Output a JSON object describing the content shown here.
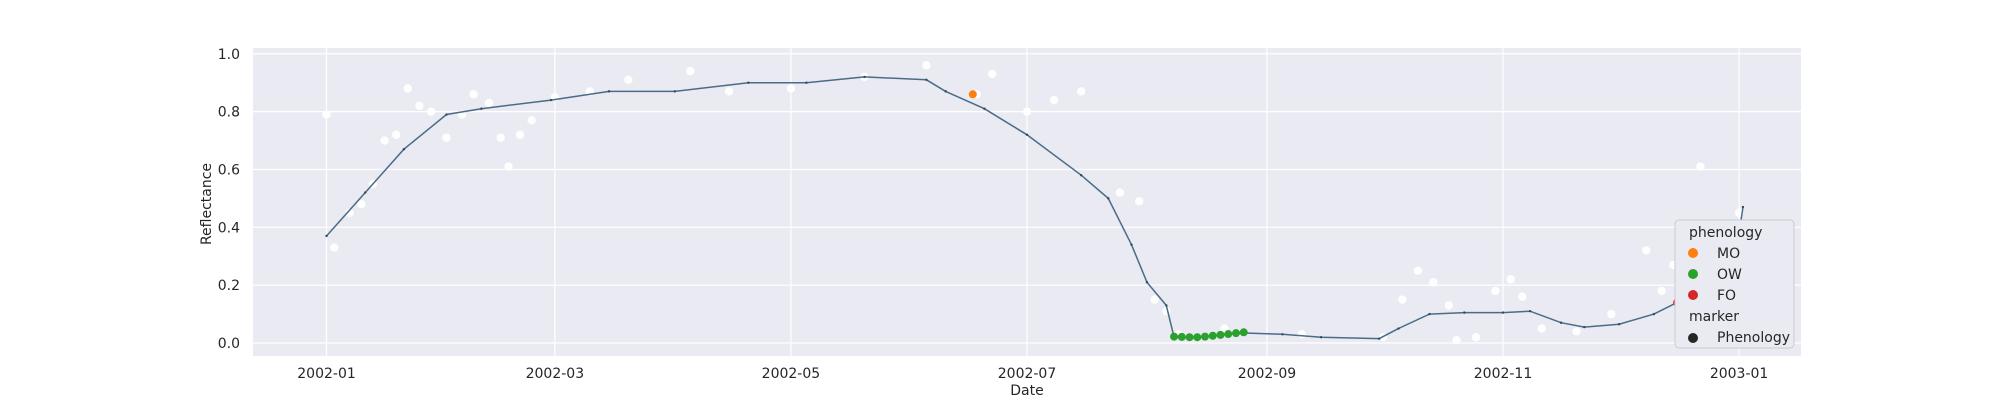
{
  "chart_data": {
    "type": "scatter",
    "xlabel": "Date",
    "ylabel": "Reflectance",
    "ylim": [
      -0.045,
      1.02
    ],
    "xlim": [
      "2001-12-13",
      "2003-01-17"
    ],
    "x_ticks": [
      "2002-01",
      "2002-03",
      "2002-05",
      "2002-07",
      "2002-09",
      "2002-11",
      "2003-01"
    ],
    "y_ticks": [
      "0.0",
      "0.2",
      "0.4",
      "0.6",
      "0.8",
      "1.0"
    ],
    "y_tick_values": [
      0.0,
      0.2,
      0.4,
      0.6,
      0.8,
      1.0
    ],
    "grid": true,
    "background": "#eaeaf2",
    "legend": {
      "placement": "lower-right",
      "hue_title": "phenology",
      "style_title": "marker",
      "entries": [
        {
          "label": "MO",
          "color": "#ff7f0e"
        },
        {
          "label": "OW",
          "color": "#2ca02c"
        },
        {
          "label": "FO",
          "color": "#d62728"
        }
      ],
      "style_entries": [
        {
          "label": "Phenology",
          "color": "#262626"
        }
      ]
    },
    "fitted_curve": {
      "color": "#4a6c86",
      "points": [
        [
          "2002-01-01",
          0.37
        ],
        [
          "2002-01-11",
          0.52
        ],
        [
          "2002-01-21",
          0.67
        ],
        [
          "2002-02-01",
          0.79
        ],
        [
          "2002-02-10",
          0.81
        ],
        [
          "2002-02-28",
          0.84
        ],
        [
          "2002-03-15",
          0.87
        ],
        [
          "2002-04-01",
          0.87
        ],
        [
          "2002-04-20",
          0.9
        ],
        [
          "2002-05-05",
          0.9
        ],
        [
          "2002-05-20",
          0.92
        ],
        [
          "2002-06-05",
          0.91
        ],
        [
          "2002-06-10",
          0.87
        ],
        [
          "2002-06-20",
          0.81
        ],
        [
          "2002-07-01",
          0.72
        ],
        [
          "2002-07-15",
          0.58
        ],
        [
          "2002-07-22",
          0.5
        ],
        [
          "2002-07-28",
          0.34
        ],
        [
          "2002-08-01",
          0.21
        ],
        [
          "2002-08-06",
          0.13
        ],
        [
          "2002-08-08",
          0.02
        ],
        [
          "2002-08-14",
          0.02
        ],
        [
          "2002-08-25",
          0.035
        ],
        [
          "2002-09-05",
          0.03
        ],
        [
          "2002-09-15",
          0.02
        ],
        [
          "2002-09-30",
          0.015
        ],
        [
          "2002-10-05",
          0.05
        ],
        [
          "2002-10-13",
          0.1
        ],
        [
          "2002-10-22",
          0.105
        ],
        [
          "2002-11-01",
          0.105
        ],
        [
          "2002-11-08",
          0.11
        ],
        [
          "2002-11-16",
          0.07
        ],
        [
          "2002-11-22",
          0.055
        ],
        [
          "2002-12-01",
          0.065
        ],
        [
          "2002-12-10",
          0.1
        ],
        [
          "2002-12-16",
          0.14
        ],
        [
          "2002-12-24",
          0.18
        ],
        [
          "2002-12-31",
          0.29
        ],
        [
          "2003-01-02",
          0.47
        ]
      ]
    },
    "raw_observations": {
      "color": "#ffffff",
      "points": [
        [
          "2002-01-01",
          0.79
        ],
        [
          "2002-01-03",
          0.33
        ],
        [
          "2002-01-07",
          0.45
        ],
        [
          "2002-01-10",
          0.48
        ],
        [
          "2002-01-13",
          0.55
        ],
        [
          "2002-01-16",
          0.7
        ],
        [
          "2002-01-19",
          0.72
        ],
        [
          "2002-01-22",
          0.88
        ],
        [
          "2002-01-25",
          0.82
        ],
        [
          "2002-01-28",
          0.8
        ],
        [
          "2002-02-01",
          0.71
        ],
        [
          "2002-02-05",
          0.79
        ],
        [
          "2002-02-08",
          0.86
        ],
        [
          "2002-02-12",
          0.83
        ],
        [
          "2002-02-15",
          0.71
        ],
        [
          "2002-02-17",
          0.61
        ],
        [
          "2002-02-20",
          0.72
        ],
        [
          "2002-02-23",
          0.77
        ],
        [
          "2002-03-01",
          0.85
        ],
        [
          "2002-03-10",
          0.87
        ],
        [
          "2002-03-20",
          0.91
        ],
        [
          "2002-04-05",
          0.94
        ],
        [
          "2002-04-15",
          0.87
        ],
        [
          "2002-05-01",
          0.88
        ],
        [
          "2002-05-20",
          0.92
        ],
        [
          "2002-06-05",
          0.96
        ],
        [
          "2002-06-18",
          0.86
        ],
        [
          "2002-06-22",
          0.93
        ],
        [
          "2002-07-01",
          0.8
        ],
        [
          "2002-07-08",
          0.84
        ],
        [
          "2002-07-15",
          0.87
        ],
        [
          "2002-07-25",
          0.52
        ],
        [
          "2002-07-30",
          0.49
        ],
        [
          "2002-08-03",
          0.15
        ],
        [
          "2002-08-06",
          0.11
        ],
        [
          "2002-08-09",
          0.03
        ],
        [
          "2002-08-21",
          0.05
        ],
        [
          "2002-09-10",
          0.03
        ],
        [
          "2002-10-01",
          0.02
        ],
        [
          "2002-10-06",
          0.15
        ],
        [
          "2002-10-10",
          0.25
        ],
        [
          "2002-10-14",
          0.21
        ],
        [
          "2002-10-18",
          0.13
        ],
        [
          "2002-10-20",
          0.01
        ],
        [
          "2002-10-25",
          0.02
        ],
        [
          "2002-10-30",
          0.18
        ],
        [
          "2002-11-03",
          0.22
        ],
        [
          "2002-11-06",
          0.16
        ],
        [
          "2002-11-11",
          0.05
        ],
        [
          "2002-11-20",
          0.04
        ],
        [
          "2002-11-29",
          0.1
        ],
        [
          "2002-12-08",
          0.32
        ],
        [
          "2002-12-12",
          0.18
        ],
        [
          "2002-12-15",
          0.27
        ],
        [
          "2002-12-19",
          0.28
        ],
        [
          "2002-12-22",
          0.61
        ],
        [
          "2002-12-26",
          0.16
        ],
        [
          "2002-12-30",
          0.31
        ],
        [
          "2003-01-01",
          0.45
        ]
      ]
    },
    "phenology_points": [
      {
        "phenology": "MO",
        "x": "2002-06-17",
        "y": 0.86
      },
      {
        "phenology": "OW",
        "x": "2002-08-08",
        "y": 0.022
      },
      {
        "phenology": "OW",
        "x": "2002-08-10",
        "y": 0.021
      },
      {
        "phenology": "OW",
        "x": "2002-08-12",
        "y": 0.02
      },
      {
        "phenology": "OW",
        "x": "2002-08-14",
        "y": 0.02
      },
      {
        "phenology": "OW",
        "x": "2002-08-16",
        "y": 0.022
      },
      {
        "phenology": "OW",
        "x": "2002-08-18",
        "y": 0.025
      },
      {
        "phenology": "OW",
        "x": "2002-08-20",
        "y": 0.028
      },
      {
        "phenology": "OW",
        "x": "2002-08-22",
        "y": 0.031
      },
      {
        "phenology": "OW",
        "x": "2002-08-24",
        "y": 0.034
      },
      {
        "phenology": "OW",
        "x": "2002-08-26",
        "y": 0.037
      },
      {
        "phenology": "FO",
        "x": "2002-12-16",
        "y": 0.14
      }
    ]
  }
}
